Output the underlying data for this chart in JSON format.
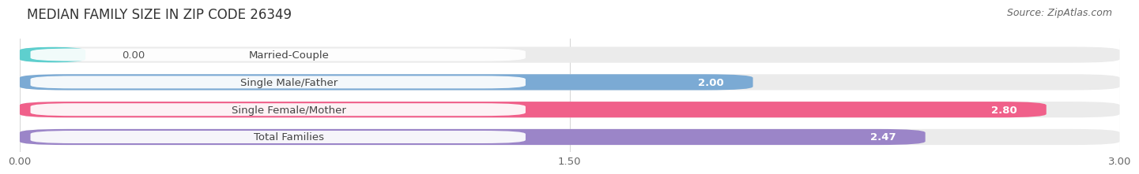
{
  "title": "MEDIAN FAMILY SIZE IN ZIP CODE 26349",
  "source": "Source: ZipAtlas.com",
  "categories": [
    "Married-Couple",
    "Single Male/Father",
    "Single Female/Mother",
    "Total Families"
  ],
  "values": [
    0.0,
    2.0,
    2.8,
    2.47
  ],
  "bar_colors": [
    "#5ecfce",
    "#7baad4",
    "#f0608a",
    "#9b85c8"
  ],
  "bar_bg_color": "#ebebeb",
  "xlim_max": 3.0,
  "xticks": [
    0.0,
    1.5,
    3.0
  ],
  "xtick_labels": [
    "0.00",
    "1.50",
    "3.00"
  ],
  "title_fontsize": 12,
  "label_fontsize": 9.5,
  "value_fontsize": 9.5,
  "source_fontsize": 9,
  "background_color": "#ffffff",
  "grid_color": "#d8d8d8",
  "label_bg_color": "#ffffff",
  "label_text_color": "#444444"
}
